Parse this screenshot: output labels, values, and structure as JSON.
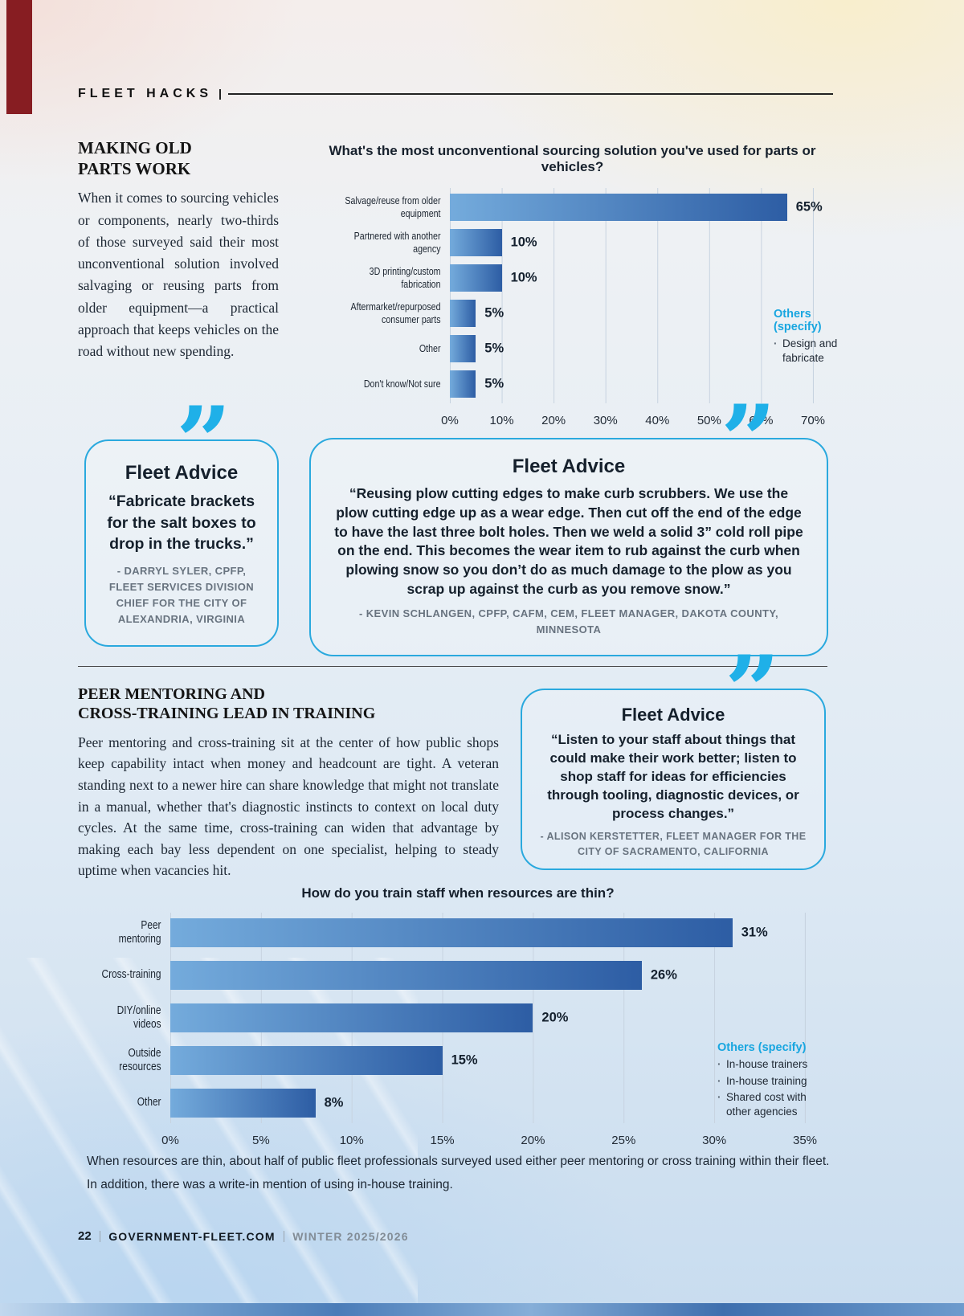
{
  "page": {
    "kicker": "FLEET HACKS"
  },
  "icons": {
    "quote": "”"
  },
  "section1": {
    "heading_line1": "MAKING OLD",
    "heading_line2": "PARTS WORK",
    "body": "When it comes to sourcing vehicles or components, nearly two-thirds of those surveyed said their most unconventional solution involved salvaging or reusing parts from older equipment—a practical approach that keeps vehicles on the road without new spending."
  },
  "advice1": {
    "title": "Fleet Advice",
    "quote": "“Fabricate brackets for the salt boxes to drop in the trucks.”",
    "attribution": "- DARRYL SYLER, CPFP, FLEET SERVICES DIVISION CHIEF FOR THE CITY OF ALEXANDRIA, VIRGINIA"
  },
  "advice2": {
    "title": "Fleet Advice",
    "quote": "“Reusing plow cutting edges to make curb scrubbers. We use the plow cutting edge up as a wear edge. Then cut off the end of the edge to have the last three bolt holes. Then we weld a solid 3” cold roll pipe on the end. This becomes the wear item to rub against the curb when plowing snow so you don’t do as much damage to the plow as you scrap up against the curb as you remove snow.”",
    "attribution": "- KEVIN SCHLANGEN, CPFP, CAFM, CEM, FLEET MANAGER, DAKOTA COUNTY, MINNESOTA"
  },
  "section2": {
    "heading_line1": "PEER MENTORING AND",
    "heading_line2": "CROSS-TRAINING LEAD IN TRAINING",
    "body": "Peer mentoring and cross-training sit at the center of how public shops keep capability intact when money and headcount are tight. A veteran standing next to a newer hire can share knowledge that might not translate in a manual, whether that's diagnostic instincts to context on local duty cycles. At the same time, cross-training can widen that advantage by making each bay less dependent on one specialist, helping to steady uptime when vacancies hit."
  },
  "advice3": {
    "title": "Fleet Advice",
    "quote": "“Listen to your staff about things that could make their work better; listen to shop staff for ideas for efficiencies through tooling, diagnostic devices, or process changes.”",
    "attribution": "- ALISON KERSTETTER, FLEET MANAGER FOR THE CITY OF SACRAMENTO, CALIFORNIA"
  },
  "chart2_caption": "When resources are thin, about half of public fleet professionals surveyed used either peer mentoring or cross training within their fleet. In addition, there was a write-in mention of using in-house training.",
  "footer": {
    "page_number": "22",
    "site": "GOVERNMENT-FLEET.COM",
    "issue": "WINTER 2025/2026"
  },
  "colors": {
    "accent_cyan": "#1fa9e0",
    "bar_gradient_light": "#74abdc",
    "bar_gradient_dark": "#2d5da4",
    "corner_stripe_red": "#871d22",
    "advice_border": "#2aa9de"
  },
  "chart_data": [
    {
      "type": "bar",
      "orientation": "horizontal",
      "title": "What's the most unconventional sourcing solution you've used for parts or vehicles?",
      "categories": [
        "Salvage/reuse from older equipment",
        "Partnered with another agency",
        "3D printing/custom fabrication",
        "Aftermarket/repurposed\nconsumer parts",
        "Other",
        "Don't know/Not sure"
      ],
      "values": [
        65,
        10,
        10,
        5,
        5,
        5
      ],
      "value_labels": [
        "65%",
        "10%",
        "10%",
        "5%",
        "5%",
        "5%"
      ],
      "xlim": [
        0,
        70
      ],
      "x_ticks": [
        "0%",
        "10%",
        "20%",
        "30%",
        "40%",
        "50%",
        "60%",
        "70%"
      ],
      "grid": true,
      "legend": "none",
      "others_note": {
        "title": "Others (specify)",
        "items": [
          "Design and fabricate"
        ]
      }
    },
    {
      "type": "bar",
      "orientation": "horizontal",
      "title": "How do you train staff when resources are thin?",
      "categories": [
        "Peer mentoring",
        "Cross-training",
        "DIY/online videos",
        "Outside resources",
        "Other"
      ],
      "values": [
        31,
        26,
        20,
        15,
        8
      ],
      "value_labels": [
        "31%",
        "26%",
        "20%",
        "15%",
        "8%"
      ],
      "xlim": [
        0,
        35
      ],
      "x_ticks": [
        "0%",
        "5%",
        "10%",
        "15%",
        "20%",
        "25%",
        "30%",
        "35%"
      ],
      "grid": true,
      "legend": "none",
      "others_note": {
        "title": "Others (specify)",
        "items": [
          "In-house trainers",
          "In-house training",
          "Shared cost with other agencies"
        ]
      }
    }
  ]
}
